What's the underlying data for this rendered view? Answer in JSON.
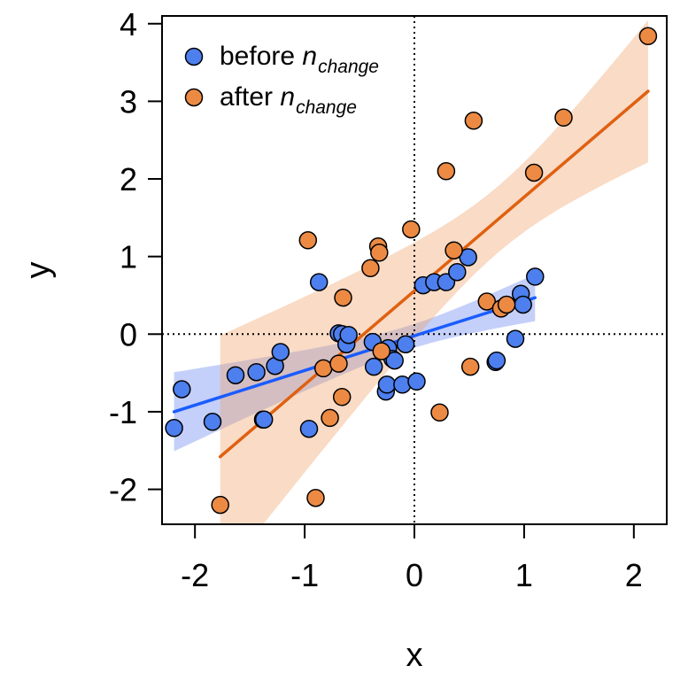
{
  "chart_data": {
    "type": "scatter",
    "title": "",
    "xlabel": "x",
    "ylabel": "y",
    "xlim": [
      -2.3,
      2.3
    ],
    "ylim": [
      -2.45,
      4.1
    ],
    "xticks": [
      -2,
      -1,
      0,
      1,
      2
    ],
    "xtick_labels": [
      "-2",
      "-1",
      "0",
      "1",
      "2"
    ],
    "yticks": [
      -2,
      -1,
      0,
      1,
      2,
      3,
      4
    ],
    "ytick_labels": [
      "-2",
      "-1",
      "0",
      "1",
      "2",
      "3",
      "4"
    ],
    "reference_lines": {
      "x": 0,
      "y": 0,
      "style": "dotted"
    },
    "legend_position": "top-left",
    "series": [
      {
        "name": "before n_change",
        "legend_main": "before ",
        "legend_italic": "n",
        "legend_sub": "change",
        "color": "#1a5cff",
        "fill": "#4d7fee",
        "points": [
          [
            -2.19,
            -1.21
          ],
          [
            -2.12,
            -0.71
          ],
          [
            -1.84,
            -1.13
          ],
          [
            -1.63,
            -0.53
          ],
          [
            -1.44,
            -0.49
          ],
          [
            -1.38,
            -1.1
          ],
          [
            -1.37,
            -1.1
          ],
          [
            -1.27,
            -0.41
          ],
          [
            -1.22,
            -0.23
          ],
          [
            -0.96,
            -1.22
          ],
          [
            -0.87,
            0.67
          ],
          [
            -0.69,
            0.01
          ],
          [
            -0.66,
            0.0
          ],
          [
            -0.62,
            -0.13
          ],
          [
            -0.6,
            -0.01
          ],
          [
            -0.38,
            -0.1
          ],
          [
            -0.37,
            -0.42
          ],
          [
            -0.26,
            -0.74
          ],
          [
            -0.25,
            -0.65
          ],
          [
            -0.24,
            -0.18
          ],
          [
            -0.2,
            -0.32
          ],
          [
            -0.18,
            -0.34
          ],
          [
            -0.11,
            -0.65
          ],
          [
            -0.08,
            -0.13
          ],
          [
            0.02,
            -0.61
          ],
          [
            0.08,
            0.63
          ],
          [
            0.18,
            0.67
          ],
          [
            0.29,
            0.67
          ],
          [
            0.39,
            0.8
          ],
          [
            0.49,
            0.99
          ],
          [
            0.74,
            -0.36
          ],
          [
            0.75,
            -0.34
          ],
          [
            0.92,
            -0.06
          ],
          [
            0.97,
            0.52
          ],
          [
            0.99,
            0.38
          ],
          [
            1.1,
            0.74
          ]
        ],
        "fit": {
          "x_start": -2.19,
          "x_end": 1.1,
          "y_start": -1.0,
          "y_end": 0.47
        },
        "band": {
          "lower_start": -1.42,
          "lower_end": 0.13,
          "upper_start": -0.58,
          "upper_end": 0.81
        }
      },
      {
        "name": "after n_change",
        "legend_main": "after ",
        "legend_italic": "n",
        "legend_sub": "change",
        "color": "#e06010",
        "fill": "#ec8a44",
        "points": [
          [
            -1.77,
            -2.2
          ],
          [
            -0.97,
            1.21
          ],
          [
            -0.9,
            -2.11
          ],
          [
            -0.83,
            -0.44
          ],
          [
            -0.77,
            -1.08
          ],
          [
            -0.69,
            -0.38
          ],
          [
            -0.66,
            -0.81
          ],
          [
            -0.65,
            0.47
          ],
          [
            -0.4,
            0.85
          ],
          [
            -0.33,
            1.13
          ],
          [
            -0.32,
            1.05
          ],
          [
            -0.3,
            -0.22
          ],
          [
            -0.03,
            1.35
          ],
          [
            0.23,
            -1.01
          ],
          [
            0.29,
            2.1
          ],
          [
            0.36,
            1.08
          ],
          [
            0.51,
            -0.42
          ],
          [
            0.54,
            2.75
          ],
          [
            0.66,
            0.42
          ],
          [
            0.79,
            0.33
          ],
          [
            0.84,
            0.38
          ],
          [
            1.09,
            2.08
          ],
          [
            1.36,
            2.79
          ],
          [
            2.13,
            3.84
          ]
        ],
        "fit": {
          "x_start": -1.77,
          "x_end": 2.13,
          "y_start": -1.58,
          "y_end": 3.13
        },
        "band": {
          "lower_start": -2.5,
          "lower_end": 1.98,
          "upper_start": -0.6,
          "upper_end": 4.25
        }
      }
    ]
  }
}
